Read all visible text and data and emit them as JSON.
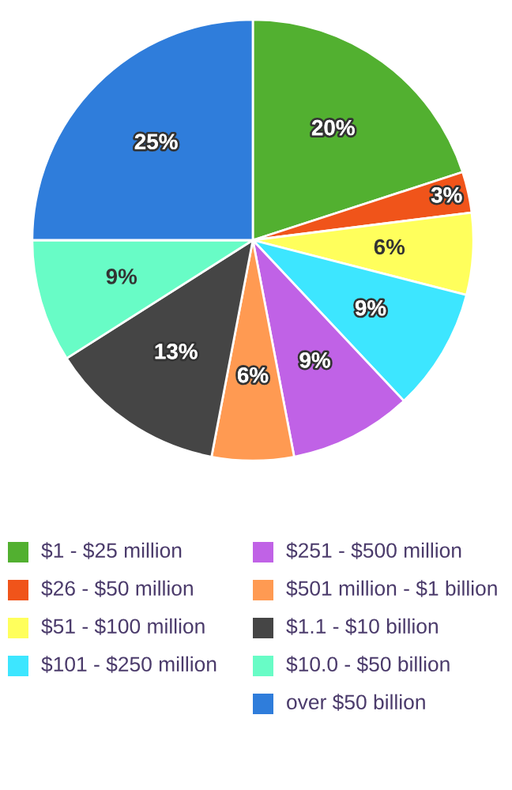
{
  "chart_data": {
    "type": "pie",
    "categories": [
      "$1 - $25 million",
      "$26 - $50 million",
      "$51 - $100 million",
      "$101 - $250 million",
      "$251 - $500 million",
      "$501 million - $1 billion",
      "$1.1 - $10 billion",
      "$10.0 - $50 billion",
      "over $50 billion"
    ],
    "values": [
      20,
      3,
      6,
      9,
      9,
      6,
      13,
      9,
      25
    ],
    "colors": [
      "#52b030",
      "#f0541a",
      "#ffff5c",
      "#3de6ff",
      "#c062e6",
      "#ff9a52",
      "#454545",
      "#68fcc6",
      "#2f7ddb"
    ],
    "value_labels": [
      "20%",
      "3%",
      "6%",
      "9%",
      "9%",
      "6%",
      "13%",
      "9%",
      "25%"
    ],
    "legend": "bottom"
  }
}
